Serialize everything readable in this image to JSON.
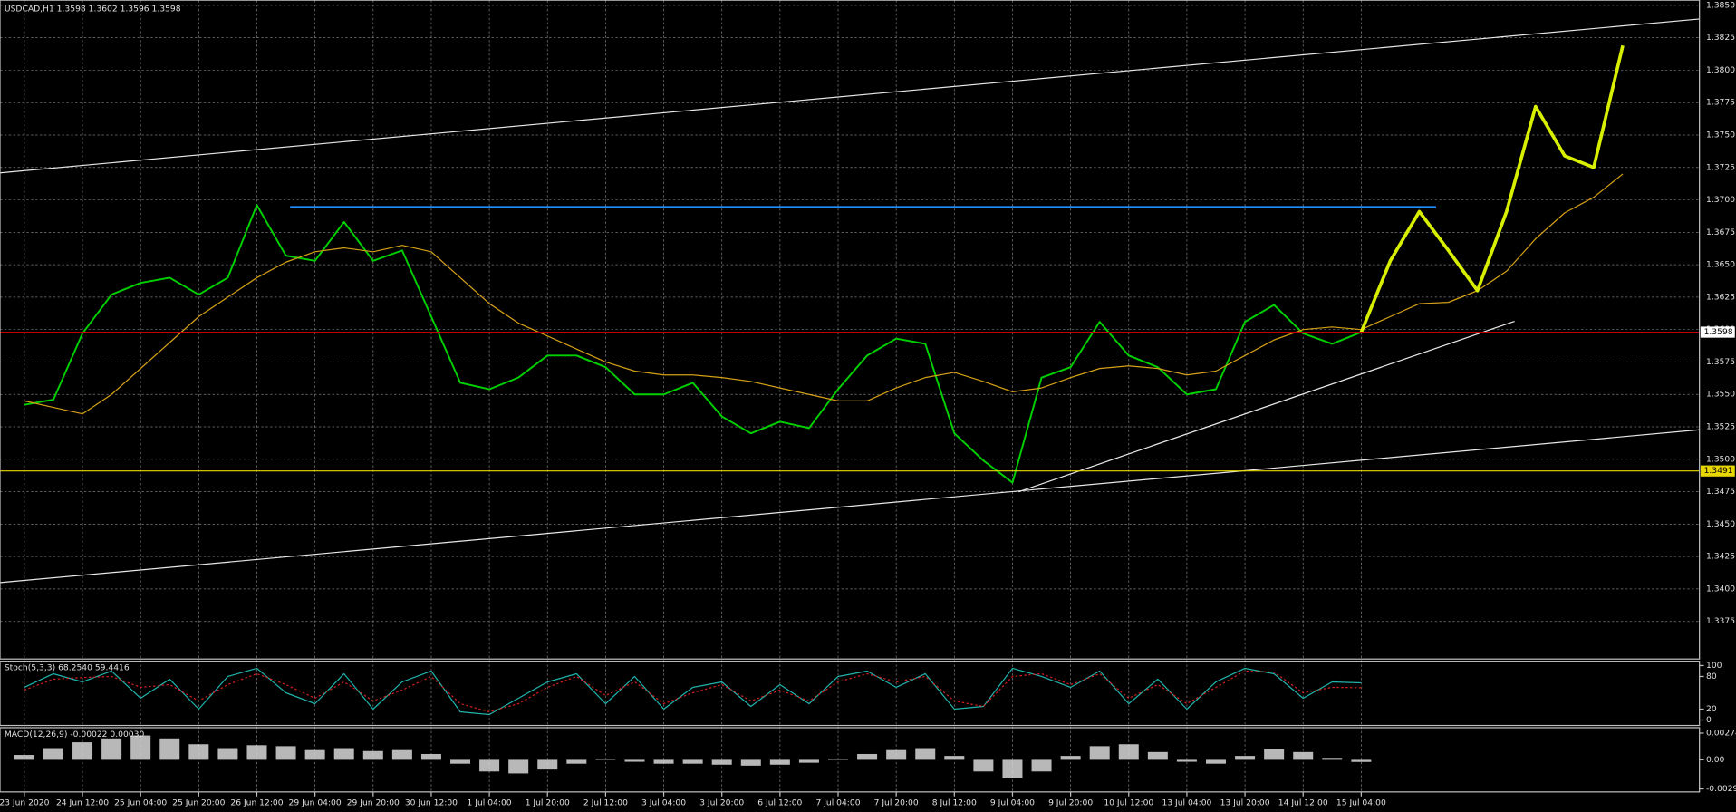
{
  "chart_data": [
    {
      "type": "line",
      "title": "USDCAD,H1 1.3598 1.3602 1.3596 1.3598",
      "categories": [
        "23 Jun 2020",
        null,
        "24 Jun 12:00",
        null,
        "25 Jun 04:00",
        null,
        "25 Jun 20:00",
        null,
        "26 Jun 12:00",
        null,
        "29 Jun 04:00",
        null,
        "29 Jun 20:00",
        null,
        "30 Jun 12:00",
        null,
        "1 Jul 04:00",
        null,
        "1 Jul 20:00",
        null,
        "2 Jul 12:00",
        null,
        "3 Jul 04:00",
        null,
        "3 Jul 20:00",
        null,
        "6 Jul 12:00",
        null,
        "7 Jul 04:00",
        null,
        "7 Jul 20:00",
        null,
        "8 Jul 12:00",
        null,
        "9 Jul 04:00",
        null,
        "9 Jul 20:00",
        null,
        "10 Jul 12:00",
        null,
        "13 Jul 04:00",
        null,
        "13 Jul 20:00",
        null,
        "14 Jul 12:00",
        null,
        "15 Jul 04:00",
        null,
        null,
        null,
        null,
        null,
        null,
        null,
        null,
        null,
        null,
        null
      ],
      "series": [
        {
          "color": "#00d000",
          "width": 1.6,
          "values": [
            1.3542,
            1.3546,
            1.3597,
            1.3627,
            1.3636,
            1.364,
            1.3627,
            1.364,
            1.3696,
            1.3657,
            1.3653,
            1.3683,
            1.3653,
            1.3661,
            1.361,
            1.3559,
            1.3554,
            1.3563,
            1.358,
            1.358,
            1.3571,
            1.355,
            1.355,
            1.3559,
            1.3533,
            1.352,
            1.3529,
            1.3524,
            1.3554,
            1.358,
            1.3593,
            1.3589,
            1.352,
            1.3499,
            1.3482,
            1.3563,
            1.3571,
            1.3606,
            1.358,
            1.3571,
            1.355,
            1.3554,
            1.3606,
            1.3619,
            1.3597,
            1.3589,
            1.3598,
            null,
            null,
            null,
            null,
            null,
            null,
            null,
            null,
            null,
            null,
            null
          ]
        },
        {
          "color": "#d4a017",
          "width": 1,
          "values": [
            1.3545,
            1.354,
            1.3535,
            1.355,
            1.357,
            1.359,
            1.361,
            1.3625,
            1.364,
            1.3652,
            1.366,
            1.3663,
            1.366,
            1.3665,
            1.366,
            1.364,
            1.362,
            1.3605,
            1.3595,
            1.3585,
            1.3575,
            1.3568,
            1.3565,
            1.3565,
            1.3563,
            1.356,
            1.3555,
            1.355,
            1.3545,
            1.3545,
            1.3555,
            1.3563,
            1.3567,
            1.356,
            1.3552,
            1.3555,
            1.3563,
            1.357,
            1.3572,
            1.357,
            1.3565,
            1.3568,
            1.358,
            1.3592,
            1.36,
            1.3602,
            1.36,
            1.361,
            1.362,
            1.3621,
            1.363,
            1.3645,
            1.367,
            1.369,
            1.3702,
            1.372,
            null,
            null
          ]
        },
        {
          "color": "#d8f000",
          "width": 3,
          "values": [
            null,
            null,
            null,
            null,
            null,
            null,
            null,
            null,
            null,
            null,
            null,
            null,
            null,
            null,
            null,
            null,
            null,
            null,
            null,
            null,
            null,
            null,
            null,
            null,
            null,
            null,
            null,
            null,
            null,
            null,
            null,
            null,
            null,
            null,
            null,
            null,
            null,
            null,
            null,
            null,
            null,
            null,
            null,
            null,
            null,
            null,
            1.3598,
            1.3653,
            1.3691,
            1.3661,
            1.363,
            1.3691,
            1.3772,
            1.3734,
            1.3725,
            1.3819,
            null,
            null
          ]
        }
      ],
      "price_levels": [
        1.3598,
        1.3491
      ],
      "level_colors": [
        "#c00000",
        "#e8d800"
      ],
      "ylim": [
        1.3346,
        1.3854
      ],
      "yticks": [
        {
          "value": 1.385,
          "label": "1.3850"
        },
        1.3825,
        {
          "value": 1.38,
          "label": "1.3800"
        },
        1.3775,
        {
          "value": 1.375,
          "label": "1.3750"
        },
        1.3725,
        {
          "value": 1.37,
          "label": "1.3700"
        },
        1.3675,
        {
          "value": 1.365,
          "label": "1.3650"
        },
        1.3625,
        {
          "value": 1.36,
          "label": "1.3600"
        },
        1.3575,
        {
          "value": 1.355,
          "label": "1.3550"
        },
        1.3525,
        {
          "value": 1.35,
          "label": "1.3500"
        },
        1.3475,
        {
          "value": 1.345,
          "label": "1.3450"
        },
        1.3425,
        {
          "value": 1.34,
          "label": "1.3400"
        },
        1.3375
      ],
      "grid": true
    },
    {
      "type": "line",
      "title": "Stoch(5,3,3) 68.2540 59.4416",
      "series": [
        {
          "color": "#20b2aa",
          "width": 1,
          "values": [
            60,
            85,
            70,
            90,
            40,
            75,
            20,
            80,
            95,
            50,
            30,
            85,
            20,
            70,
            90,
            15,
            10,
            40,
            70,
            85,
            30,
            80,
            20,
            60,
            70,
            25,
            65,
            30,
            80,
            90,
            60,
            85,
            20,
            25,
            95,
            80,
            60,
            90,
            30,
            75,
            20,
            70,
            95,
            85,
            40,
            70,
            68.254
          ]
        },
        {
          "color": "#d02020",
          "width": 1,
          "dash": true,
          "values": [
            55,
            75,
            78,
            80,
            60,
            65,
            35,
            65,
            85,
            65,
            40,
            70,
            35,
            55,
            80,
            30,
            15,
            30,
            60,
            80,
            45,
            70,
            30,
            50,
            65,
            35,
            55,
            35,
            70,
            85,
            70,
            80,
            35,
            25,
            80,
            85,
            65,
            85,
            40,
            65,
            30,
            60,
            90,
            88,
            50,
            60,
            59.4416
          ]
        }
      ],
      "ylim": [
        -10,
        108
      ],
      "yticks": [
        100,
        80,
        20,
        0
      ],
      "grid": true
    },
    {
      "type": "bar",
      "title": "MACD(12,26,9) -0.00022 0.00030",
      "color": "#d8d8d8",
      "values": [
        0.0005,
        0.0012,
        0.0018,
        0.0022,
        0.0025,
        0.0022,
        0.0016,
        0.0012,
        0.0015,
        0.0014,
        0.001,
        0.0012,
        0.0009,
        0.001,
        0.0006,
        -0.0004,
        -0.0012,
        -0.0014,
        -0.001,
        -0.0004,
        0.0001,
        -0.0002,
        -0.0004,
        -0.0004,
        -0.0005,
        -0.0006,
        -0.0005,
        -0.0003,
        0.0001,
        0.0006,
        0.001,
        0.0012,
        0.0004,
        -0.0012,
        -0.0019,
        -0.0012,
        0.0004,
        0.0014,
        0.0016,
        0.0008,
        -0.0002,
        -0.0004,
        0.0004,
        0.0011,
        0.0008,
        0.0002,
        -0.00022
      ],
      "ylim": [
        -0.0033,
        0.0033
      ],
      "yticks": [
        {
          "value": 0.00274,
          "label": "0.00274"
        },
        {
          "value": 0,
          "label": "0.00"
        },
        {
          "value": -0.00299,
          "label": "-0.00299"
        }
      ],
      "grid": true
    }
  ]
}
